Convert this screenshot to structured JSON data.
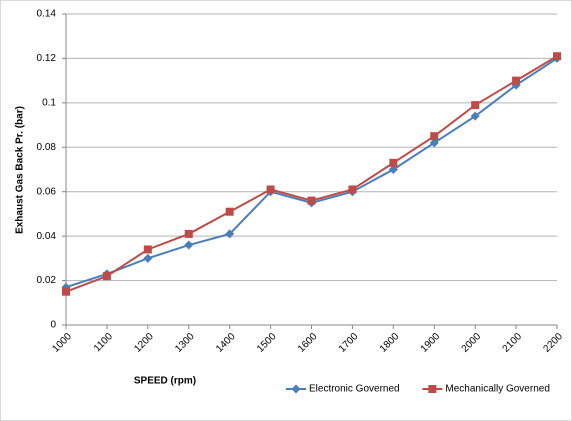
{
  "chart_data": {
    "type": "line",
    "y_label": "Exhaust Gas Back Pr. (bar)",
    "x_label": "SPEED (rpm)",
    "categories": [
      "1000",
      "1100",
      "1200",
      "1300",
      "1400",
      "1500",
      "1600",
      "1700",
      "1800",
      "1900",
      "2000",
      "2100",
      "2200"
    ],
    "series": [
      {
        "name": "Electronic Governed",
        "color": "#4a7ebb",
        "marker": "diamond",
        "values": [
          0.017,
          0.023,
          0.03,
          0.036,
          0.041,
          0.06,
          0.055,
          0.06,
          0.07,
          0.082,
          0.094,
          0.108,
          0.12
        ]
      },
      {
        "name": "Mechanically Governed",
        "color": "#be4b48",
        "marker": "square",
        "values": [
          0.015,
          0.022,
          0.034,
          0.041,
          0.051,
          0.061,
          0.056,
          0.061,
          0.073,
          0.085,
          0.099,
          0.11,
          0.121
        ]
      }
    ],
    "ylim": [
      0,
      0.14
    ],
    "yticks": [
      0,
      0.02,
      0.04,
      0.06,
      0.08,
      0.1,
      0.12,
      0.14
    ],
    "grid": true,
    "legend": "bottom-right"
  }
}
